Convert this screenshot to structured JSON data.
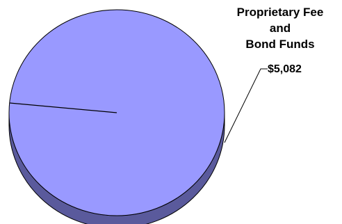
{
  "chart_data": {
    "type": "pie",
    "style": "3d",
    "slices": [
      {
        "label_lines": [
          "Proprietary Fee",
          "and",
          "Bond Funds"
        ],
        "value_label": "$5,082",
        "color": "#9999ff"
      },
      {
        "label_lines": [],
        "value_label": "",
        "color": "#9999ff"
      }
    ],
    "shares": [
      0.975,
      0.025
    ],
    "colors": {
      "top": "#9999ff",
      "side": "#5a5a9c",
      "outline": "#000000"
    }
  }
}
